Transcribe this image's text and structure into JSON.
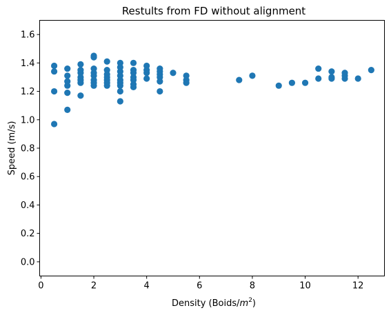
{
  "chart_data": {
    "type": "scatter",
    "title": "Restults from FD without alignment",
    "xlabel_main": "Density (Boids/",
    "xlabel_var": "m",
    "xlabel_sup": "2",
    "xlabel_close": ")",
    "ylabel": "Speed (m/s)",
    "xlim": [
      -0.05,
      13.0
    ],
    "ylim": [
      -0.1,
      1.7
    ],
    "xticks": [
      0,
      2,
      4,
      6,
      8,
      10,
      12
    ],
    "yticks": [
      0.0,
      0.2,
      0.4,
      0.6,
      0.8,
      1.0,
      1.2,
      1.4,
      1.6
    ],
    "xtick_labels": [
      "0",
      "2",
      "4",
      "6",
      "8",
      "10",
      "12"
    ],
    "ytick_labels": [
      "0.0",
      "0.2",
      "0.4",
      "0.6",
      "0.8",
      "1.0",
      "1.2",
      "1.4",
      "1.6"
    ],
    "marker_color": "#1f77b4",
    "grid": false,
    "points": [
      {
        "x": 0.5,
        "y": 1.38
      },
      {
        "x": 0.5,
        "y": 1.34
      },
      {
        "x": 0.5,
        "y": 1.2
      },
      {
        "x": 0.5,
        "y": 0.97
      },
      {
        "x": 1.0,
        "y": 1.36
      },
      {
        "x": 1.0,
        "y": 1.31
      },
      {
        "x": 1.0,
        "y": 1.27
      },
      {
        "x": 1.0,
        "y": 1.24
      },
      {
        "x": 1.0,
        "y": 1.19
      },
      {
        "x": 1.0,
        "y": 1.07
      },
      {
        "x": 1.5,
        "y": 1.39
      },
      {
        "x": 1.5,
        "y": 1.35
      },
      {
        "x": 1.5,
        "y": 1.33
      },
      {
        "x": 1.5,
        "y": 1.3
      },
      {
        "x": 1.5,
        "y": 1.28
      },
      {
        "x": 1.5,
        "y": 1.26
      },
      {
        "x": 1.5,
        "y": 1.17
      },
      {
        "x": 2.0,
        "y": 1.45
      },
      {
        "x": 2.0,
        "y": 1.44
      },
      {
        "x": 2.0,
        "y": 1.36
      },
      {
        "x": 2.0,
        "y": 1.33
      },
      {
        "x": 2.0,
        "y": 1.31
      },
      {
        "x": 2.0,
        "y": 1.28
      },
      {
        "x": 2.0,
        "y": 1.26
      },
      {
        "x": 2.0,
        "y": 1.24
      },
      {
        "x": 2.5,
        "y": 1.41
      },
      {
        "x": 2.5,
        "y": 1.35
      },
      {
        "x": 2.5,
        "y": 1.32
      },
      {
        "x": 2.5,
        "y": 1.3
      },
      {
        "x": 2.5,
        "y": 1.28
      },
      {
        "x": 2.5,
        "y": 1.26
      },
      {
        "x": 2.5,
        "y": 1.24
      },
      {
        "x": 3.0,
        "y": 1.4
      },
      {
        "x": 3.0,
        "y": 1.37
      },
      {
        "x": 3.0,
        "y": 1.34
      },
      {
        "x": 3.0,
        "y": 1.31
      },
      {
        "x": 3.0,
        "y": 1.28
      },
      {
        "x": 3.0,
        "y": 1.26
      },
      {
        "x": 3.0,
        "y": 1.24
      },
      {
        "x": 3.0,
        "y": 1.2
      },
      {
        "x": 3.0,
        "y": 1.13
      },
      {
        "x": 3.5,
        "y": 1.4
      },
      {
        "x": 3.5,
        "y": 1.35
      },
      {
        "x": 3.5,
        "y": 1.33
      },
      {
        "x": 3.5,
        "y": 1.3
      },
      {
        "x": 3.5,
        "y": 1.28
      },
      {
        "x": 3.5,
        "y": 1.25
      },
      {
        "x": 3.5,
        "y": 1.23
      },
      {
        "x": 4.0,
        "y": 1.38
      },
      {
        "x": 4.0,
        "y": 1.35
      },
      {
        "x": 4.0,
        "y": 1.33
      },
      {
        "x": 4.0,
        "y": 1.29
      },
      {
        "x": 4.5,
        "y": 1.36
      },
      {
        "x": 4.5,
        "y": 1.34
      },
      {
        "x": 4.5,
        "y": 1.32
      },
      {
        "x": 4.5,
        "y": 1.3
      },
      {
        "x": 4.5,
        "y": 1.27
      },
      {
        "x": 4.5,
        "y": 1.2
      },
      {
        "x": 5.0,
        "y": 1.33
      },
      {
        "x": 5.5,
        "y": 1.31
      },
      {
        "x": 5.5,
        "y": 1.28
      },
      {
        "x": 5.5,
        "y": 1.26
      },
      {
        "x": 7.5,
        "y": 1.28
      },
      {
        "x": 8.0,
        "y": 1.31
      },
      {
        "x": 9.0,
        "y": 1.24
      },
      {
        "x": 9.5,
        "y": 1.26
      },
      {
        "x": 10.0,
        "y": 1.26
      },
      {
        "x": 10.5,
        "y": 1.36
      },
      {
        "x": 10.5,
        "y": 1.29
      },
      {
        "x": 11.0,
        "y": 1.34
      },
      {
        "x": 11.0,
        "y": 1.3
      },
      {
        "x": 11.0,
        "y": 1.29
      },
      {
        "x": 11.5,
        "y": 1.33
      },
      {
        "x": 11.5,
        "y": 1.31
      },
      {
        "x": 11.5,
        "y": 1.29
      },
      {
        "x": 12.0,
        "y": 1.29
      },
      {
        "x": 12.5,
        "y": 1.35
      }
    ]
  }
}
